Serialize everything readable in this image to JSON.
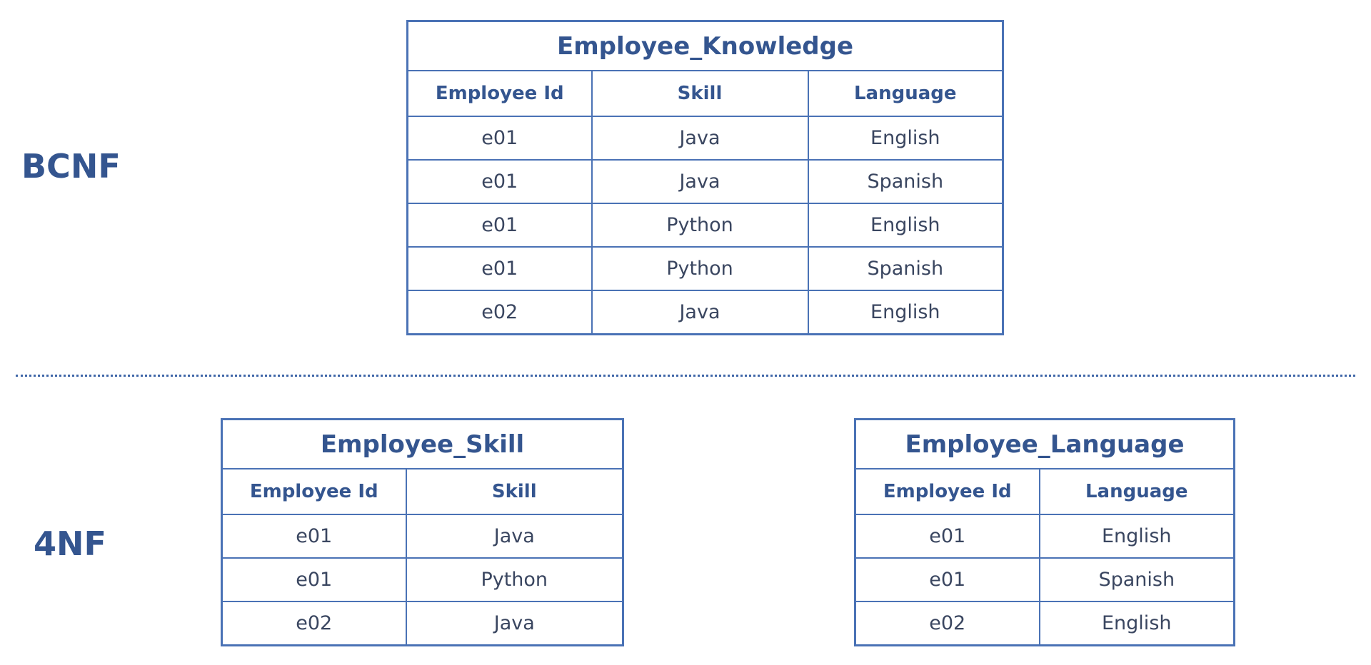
{
  "labels": {
    "bcnf": "BCNF",
    "fournf": "4NF"
  },
  "knowledge": {
    "title": "Employee_Knowledge",
    "headers": [
      "Employee Id",
      "Skill",
      "Language"
    ],
    "rows": [
      [
        "e01",
        "Java",
        "English"
      ],
      [
        "e01",
        "Java",
        "Spanish"
      ],
      [
        "e01",
        "Python",
        "English"
      ],
      [
        "e01",
        "Python",
        "Spanish"
      ],
      [
        "e02",
        "Java",
        "English"
      ]
    ]
  },
  "skill": {
    "title": "Employee_Skill",
    "headers": [
      "Employee Id",
      "Skill"
    ],
    "rows": [
      [
        "e01",
        "Java"
      ],
      [
        "e01",
        "Python"
      ],
      [
        "e02",
        "Java"
      ]
    ]
  },
  "language": {
    "title": "Employee_Language",
    "headers": [
      "Employee Id",
      "Language"
    ],
    "rows": [
      [
        "e01",
        "English"
      ],
      [
        "e01",
        "Spanish"
      ],
      [
        "e02",
        "English"
      ]
    ]
  },
  "colors": {
    "border": "#4a72b5",
    "heading": "#34558f",
    "cell_text": "#3a4660"
  }
}
